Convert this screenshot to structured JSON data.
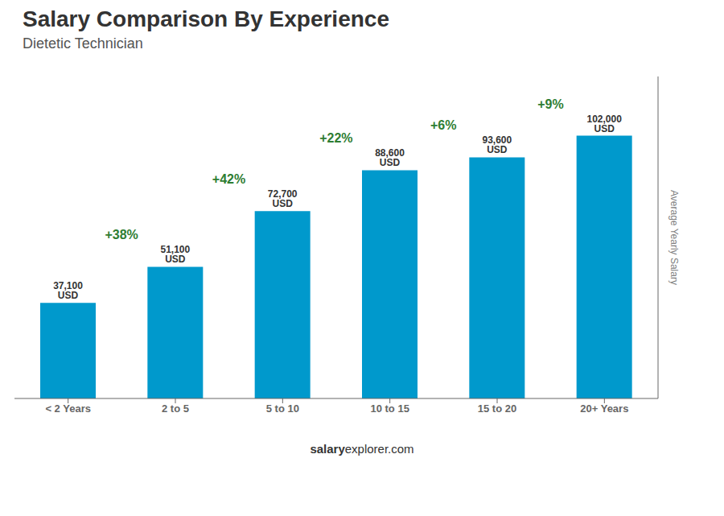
{
  "chart_data": {
    "type": "bar",
    "title": "Salary Comparison By Experience",
    "subtitle": "Dietetic Technician",
    "categories": [
      "< 2 Years",
      "2 to 5",
      "5 to 10",
      "10 to 15",
      "15 to 20",
      "20+ Years"
    ],
    "values": [
      37100,
      51100,
      72700,
      88600,
      93600,
      102000
    ],
    "value_labels": [
      "37,100 USD",
      "51,100 USD",
      "72,700 USD",
      "88,600 USD",
      "93,600 USD",
      "102,000 USD"
    ],
    "data_labels": true,
    "color": "#0099cc",
    "ylabel": "Average Yearly Salary",
    "ylim": [
      0,
      125000
    ],
    "tick_labels": "x",
    "grid": false,
    "annotations": [
      "+38%",
      "+42%",
      "+22%",
      "+6%",
      "+9%"
    ],
    "footer": [
      "salary",
      "explorer.com"
    ]
  }
}
